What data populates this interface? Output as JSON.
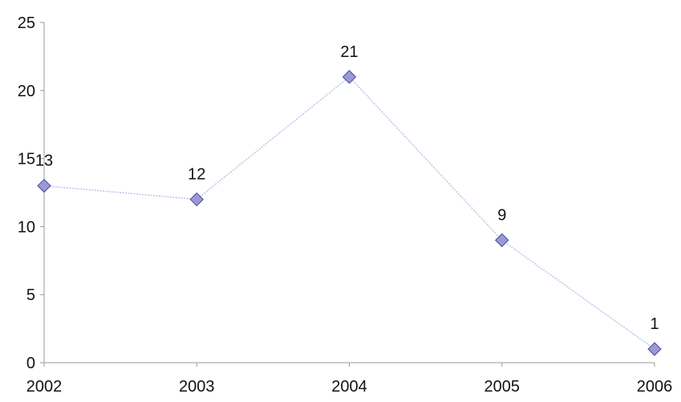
{
  "chart_data": {
    "type": "line",
    "title": "",
    "xlabel": "",
    "ylabel": "",
    "categories": [
      "2002",
      "2003",
      "2004",
      "2005",
      "2006"
    ],
    "series": [
      {
        "values": [
          13,
          12,
          21,
          9,
          1
        ],
        "data_labels": [
          "13",
          "12",
          "21",
          "9",
          "1"
        ]
      }
    ],
    "ylim": [
      0,
      25
    ],
    "y_ticks": [
      "0",
      "5",
      "10",
      "15",
      "20",
      "25"
    ],
    "grid": false,
    "legend": "none",
    "colors": {
      "line": "#b8c6e8",
      "marker_fill": "#9a99d6",
      "marker_stroke": "#4a4aa0",
      "axis": "#9a9a9a",
      "text": "#111111"
    }
  }
}
